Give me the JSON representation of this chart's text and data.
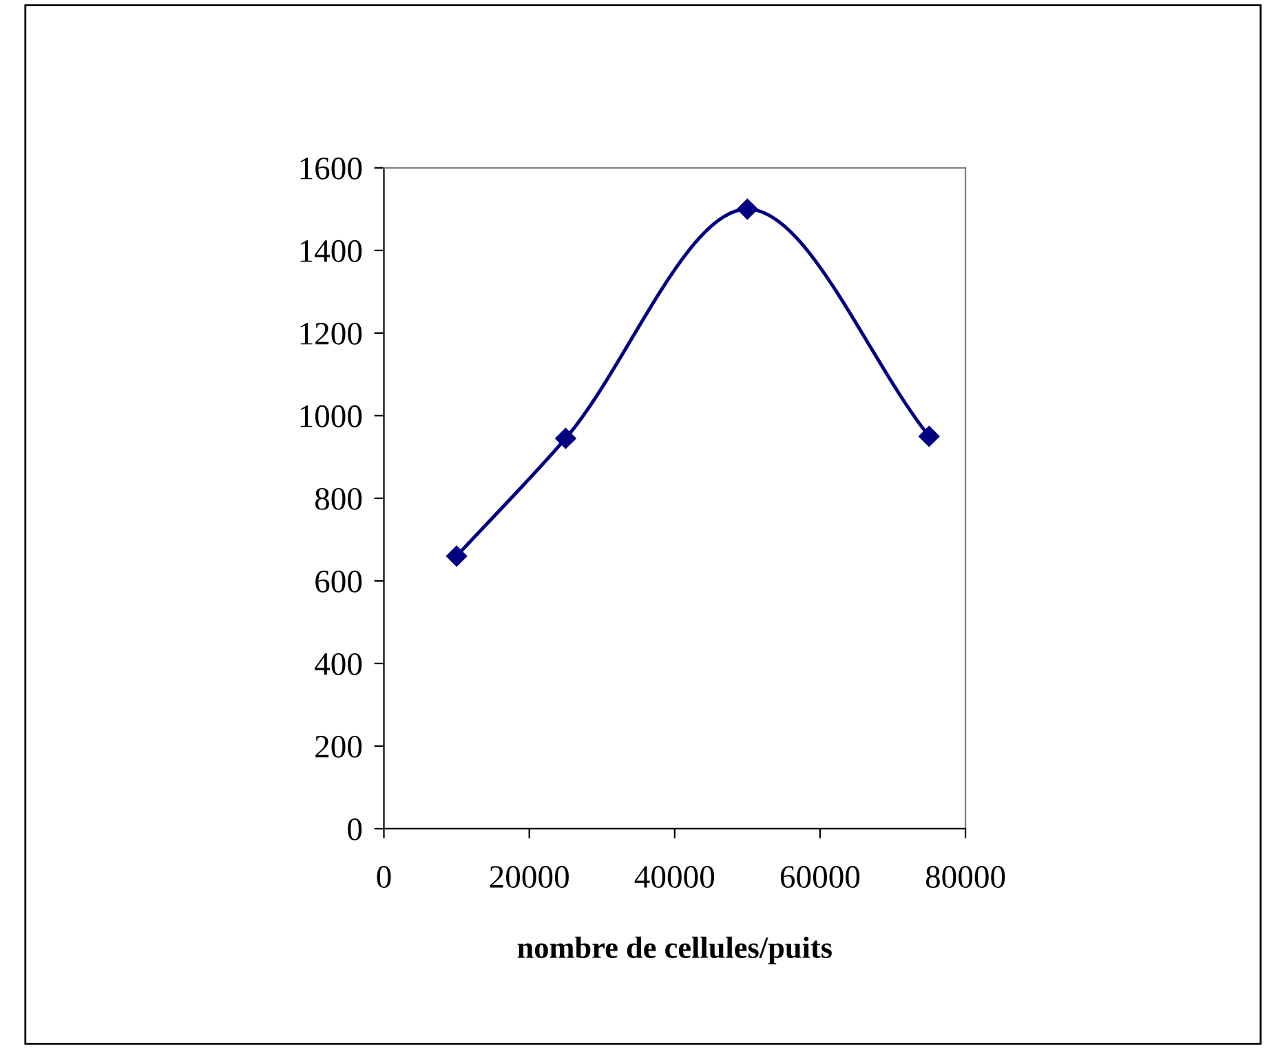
{
  "chart_data": {
    "type": "line",
    "xlabel": "nombre de cellules/puits",
    "x": [
      10000,
      25000,
      50000,
      75000
    ],
    "series": [
      {
        "color": "#000080",
        "values": [
          660,
          945,
          1500,
          950
        ]
      }
    ],
    "xlim": [
      0,
      80000
    ],
    "xticks": [
      0,
      20000,
      40000,
      60000,
      80000
    ],
    "ylim": [
      0,
      1600
    ],
    "yticks": [
      0,
      200,
      400,
      600,
      800,
      1000,
      1200,
      1400,
      1600
    ],
    "marker": "diamond",
    "line_style": "solid",
    "grid": false,
    "legend": false
  }
}
